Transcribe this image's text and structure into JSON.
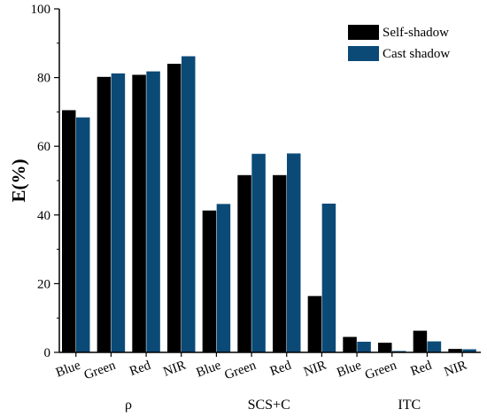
{
  "chart_data": {
    "type": "bar",
    "title": "",
    "xlabel": "",
    "ylabel": "E(%)",
    "ylim": [
      0,
      100
    ],
    "yticks": [
      0,
      20,
      40,
      60,
      80,
      100
    ],
    "grid": false,
    "legend_position": "top-right",
    "groups": [
      {
        "label": "ρ",
        "categories": [
          "Blue",
          "Green",
          "Red",
          "NIR"
        ]
      },
      {
        "label": "SCS+C",
        "categories": [
          "Blue",
          "Green",
          "Red",
          "NIR"
        ]
      },
      {
        "label": "ITC",
        "categories": [
          "Blue",
          "Green",
          "Red",
          "NIR"
        ]
      }
    ],
    "categories": [
      "Blue",
      "Green",
      "Red",
      "NIR",
      "Blue",
      "Green",
      "Red",
      "NIR",
      "Blue",
      "Green",
      "Red",
      "NIR"
    ],
    "series": [
      {
        "name": "Self-shadow",
        "color": "#000000",
        "values": [
          70.5,
          80.2,
          80.8,
          84.0,
          41.3,
          51.6,
          51.6,
          16.4,
          4.5,
          2.8,
          6.3,
          1.0
        ]
      },
      {
        "name": "Cast shadow",
        "color": "#0b4a77",
        "values": [
          68.4,
          81.2,
          81.8,
          86.2,
          43.2,
          57.8,
          57.9,
          43.3,
          3.1,
          0.4,
          3.2,
          0.9
        ]
      }
    ]
  }
}
